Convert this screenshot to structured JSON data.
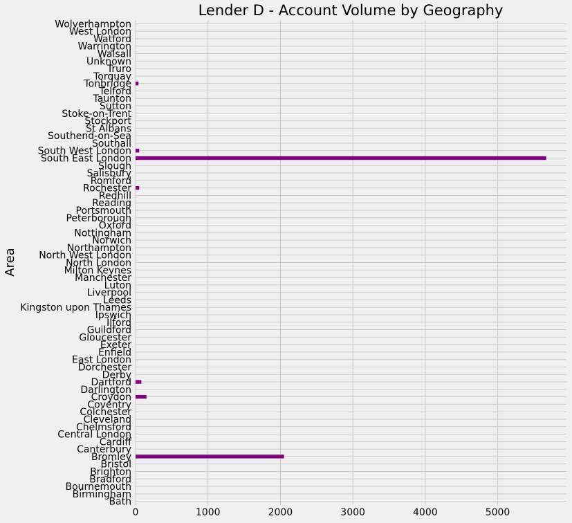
{
  "chart_data": {
    "type": "bar",
    "orientation": "horizontal",
    "title": "Lender D - Account Volume by Geography",
    "xlabel": "",
    "ylabel": "Area",
    "xlim": [
      0,
      5950
    ],
    "xticks": [
      0,
      1000,
      2000,
      3000,
      4000,
      5000
    ],
    "grid": true,
    "bar_color": "#800080",
    "background_color": "#f0f0f0",
    "grid_color": "#cbcbcb",
    "categories": [
      "Bath",
      "Birmingham",
      "Bournemouth",
      "Bradford",
      "Brighton",
      "Bristol",
      "Bromley",
      "Canterbury",
      "Cardiff",
      "Central London",
      "Chelmsford",
      "Cleveland",
      "Colchester",
      "Coventry",
      "Croydon",
      "Darlington",
      "Dartford",
      "Derby",
      "Dorchester",
      "East London",
      "Enfield",
      "Exeter",
      "Gloucester",
      "Guildford",
      "Ilford",
      "Ipswich",
      "Kingston upon Thames",
      "Leeds",
      "Liverpool",
      "Luton",
      "Manchester",
      "Milton Keynes",
      "North London",
      "North West London",
      "Northampton",
      "Norwich",
      "Nottingham",
      "Oxford",
      "Peterborough",
      "Portsmouth",
      "Reading",
      "Redhill",
      "Rochester",
      "Romford",
      "Salisbury",
      "Slough",
      "South East London",
      "South West London",
      "Southall",
      "Southend-on-Sea",
      "St Albans",
      "Stockport",
      "Stoke-on-Trent",
      "Sutton",
      "Taunton",
      "Telford",
      "Tonbridge",
      "Torquay",
      "Truro",
      "Unknown",
      "Walsall",
      "Warrington",
      "Watford",
      "West London",
      "Wolverhampton"
    ],
    "values": [
      0,
      0,
      0,
      0,
      0,
      0,
      2050,
      0,
      0,
      0,
      0,
      0,
      0,
      0,
      150,
      0,
      80,
      0,
      0,
      0,
      0,
      0,
      0,
      0,
      0,
      0,
      0,
      0,
      0,
      0,
      0,
      0,
      0,
      0,
      0,
      0,
      0,
      0,
      0,
      0,
      0,
      0,
      50,
      0,
      0,
      0,
      5670,
      50,
      0,
      0,
      0,
      0,
      0,
      0,
      0,
      0,
      40,
      0,
      0,
      0,
      0,
      0,
      0,
      0,
      0
    ]
  }
}
